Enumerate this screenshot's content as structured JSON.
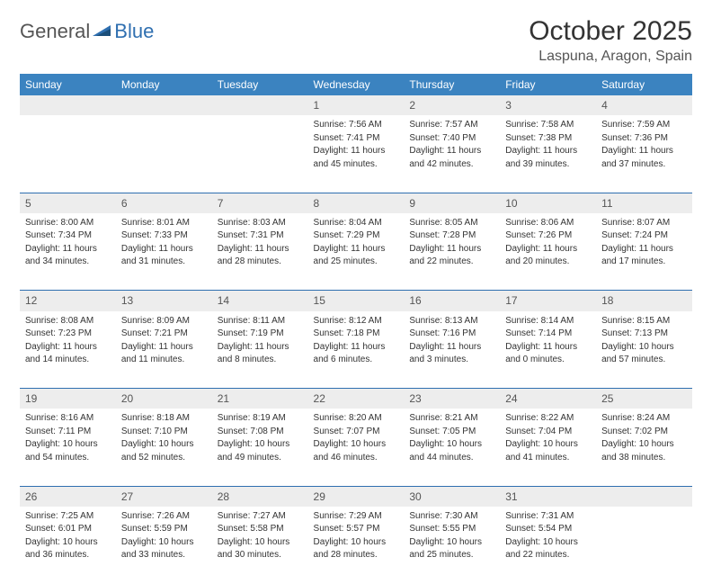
{
  "logo": {
    "word1": "General",
    "word2": "Blue"
  },
  "title": "October 2025",
  "location": "Laspuna, Aragon, Spain",
  "colors": {
    "header_bg": "#3b83c0",
    "header_text": "#ffffff",
    "daynum_bg": "#ededed",
    "separator": "#2f6fb0",
    "text": "#333333",
    "logo_blue": "#2f6fb0"
  },
  "dayHeaders": [
    "Sunday",
    "Monday",
    "Tuesday",
    "Wednesday",
    "Thursday",
    "Friday",
    "Saturday"
  ],
  "weeks": [
    [
      {
        "n": "",
        "lines": []
      },
      {
        "n": "",
        "lines": []
      },
      {
        "n": "",
        "lines": []
      },
      {
        "n": "1",
        "lines": [
          "Sunrise: 7:56 AM",
          "Sunset: 7:41 PM",
          "Daylight: 11 hours",
          "and 45 minutes."
        ]
      },
      {
        "n": "2",
        "lines": [
          "Sunrise: 7:57 AM",
          "Sunset: 7:40 PM",
          "Daylight: 11 hours",
          "and 42 minutes."
        ]
      },
      {
        "n": "3",
        "lines": [
          "Sunrise: 7:58 AM",
          "Sunset: 7:38 PM",
          "Daylight: 11 hours",
          "and 39 minutes."
        ]
      },
      {
        "n": "4",
        "lines": [
          "Sunrise: 7:59 AM",
          "Sunset: 7:36 PM",
          "Daylight: 11 hours",
          "and 37 minutes."
        ]
      }
    ],
    [
      {
        "n": "5",
        "lines": [
          "Sunrise: 8:00 AM",
          "Sunset: 7:34 PM",
          "Daylight: 11 hours",
          "and 34 minutes."
        ]
      },
      {
        "n": "6",
        "lines": [
          "Sunrise: 8:01 AM",
          "Sunset: 7:33 PM",
          "Daylight: 11 hours",
          "and 31 minutes."
        ]
      },
      {
        "n": "7",
        "lines": [
          "Sunrise: 8:03 AM",
          "Sunset: 7:31 PM",
          "Daylight: 11 hours",
          "and 28 minutes."
        ]
      },
      {
        "n": "8",
        "lines": [
          "Sunrise: 8:04 AM",
          "Sunset: 7:29 PM",
          "Daylight: 11 hours",
          "and 25 minutes."
        ]
      },
      {
        "n": "9",
        "lines": [
          "Sunrise: 8:05 AM",
          "Sunset: 7:28 PM",
          "Daylight: 11 hours",
          "and 22 minutes."
        ]
      },
      {
        "n": "10",
        "lines": [
          "Sunrise: 8:06 AM",
          "Sunset: 7:26 PM",
          "Daylight: 11 hours",
          "and 20 minutes."
        ]
      },
      {
        "n": "11",
        "lines": [
          "Sunrise: 8:07 AM",
          "Sunset: 7:24 PM",
          "Daylight: 11 hours",
          "and 17 minutes."
        ]
      }
    ],
    [
      {
        "n": "12",
        "lines": [
          "Sunrise: 8:08 AM",
          "Sunset: 7:23 PM",
          "Daylight: 11 hours",
          "and 14 minutes."
        ]
      },
      {
        "n": "13",
        "lines": [
          "Sunrise: 8:09 AM",
          "Sunset: 7:21 PM",
          "Daylight: 11 hours",
          "and 11 minutes."
        ]
      },
      {
        "n": "14",
        "lines": [
          "Sunrise: 8:11 AM",
          "Sunset: 7:19 PM",
          "Daylight: 11 hours",
          "and 8 minutes."
        ]
      },
      {
        "n": "15",
        "lines": [
          "Sunrise: 8:12 AM",
          "Sunset: 7:18 PM",
          "Daylight: 11 hours",
          "and 6 minutes."
        ]
      },
      {
        "n": "16",
        "lines": [
          "Sunrise: 8:13 AM",
          "Sunset: 7:16 PM",
          "Daylight: 11 hours",
          "and 3 minutes."
        ]
      },
      {
        "n": "17",
        "lines": [
          "Sunrise: 8:14 AM",
          "Sunset: 7:14 PM",
          "Daylight: 11 hours",
          "and 0 minutes."
        ]
      },
      {
        "n": "18",
        "lines": [
          "Sunrise: 8:15 AM",
          "Sunset: 7:13 PM",
          "Daylight: 10 hours",
          "and 57 minutes."
        ]
      }
    ],
    [
      {
        "n": "19",
        "lines": [
          "Sunrise: 8:16 AM",
          "Sunset: 7:11 PM",
          "Daylight: 10 hours",
          "and 54 minutes."
        ]
      },
      {
        "n": "20",
        "lines": [
          "Sunrise: 8:18 AM",
          "Sunset: 7:10 PM",
          "Daylight: 10 hours",
          "and 52 minutes."
        ]
      },
      {
        "n": "21",
        "lines": [
          "Sunrise: 8:19 AM",
          "Sunset: 7:08 PM",
          "Daylight: 10 hours",
          "and 49 minutes."
        ]
      },
      {
        "n": "22",
        "lines": [
          "Sunrise: 8:20 AM",
          "Sunset: 7:07 PM",
          "Daylight: 10 hours",
          "and 46 minutes."
        ]
      },
      {
        "n": "23",
        "lines": [
          "Sunrise: 8:21 AM",
          "Sunset: 7:05 PM",
          "Daylight: 10 hours",
          "and 44 minutes."
        ]
      },
      {
        "n": "24",
        "lines": [
          "Sunrise: 8:22 AM",
          "Sunset: 7:04 PM",
          "Daylight: 10 hours",
          "and 41 minutes."
        ]
      },
      {
        "n": "25",
        "lines": [
          "Sunrise: 8:24 AM",
          "Sunset: 7:02 PM",
          "Daylight: 10 hours",
          "and 38 minutes."
        ]
      }
    ],
    [
      {
        "n": "26",
        "lines": [
          "Sunrise: 7:25 AM",
          "Sunset: 6:01 PM",
          "Daylight: 10 hours",
          "and 36 minutes."
        ]
      },
      {
        "n": "27",
        "lines": [
          "Sunrise: 7:26 AM",
          "Sunset: 5:59 PM",
          "Daylight: 10 hours",
          "and 33 minutes."
        ]
      },
      {
        "n": "28",
        "lines": [
          "Sunrise: 7:27 AM",
          "Sunset: 5:58 PM",
          "Daylight: 10 hours",
          "and 30 minutes."
        ]
      },
      {
        "n": "29",
        "lines": [
          "Sunrise: 7:29 AM",
          "Sunset: 5:57 PM",
          "Daylight: 10 hours",
          "and 28 minutes."
        ]
      },
      {
        "n": "30",
        "lines": [
          "Sunrise: 7:30 AM",
          "Sunset: 5:55 PM",
          "Daylight: 10 hours",
          "and 25 minutes."
        ]
      },
      {
        "n": "31",
        "lines": [
          "Sunrise: 7:31 AM",
          "Sunset: 5:54 PM",
          "Daylight: 10 hours",
          "and 22 minutes."
        ]
      },
      {
        "n": "",
        "lines": []
      }
    ]
  ]
}
